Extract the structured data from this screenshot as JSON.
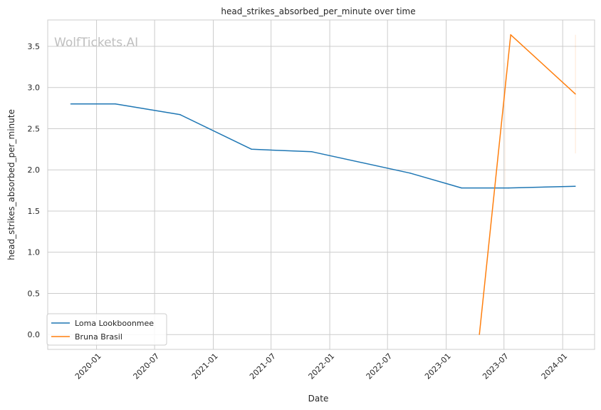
{
  "chart_data": {
    "type": "line",
    "title": "head_strikes_absorbed_per_minute over time",
    "xlabel": "Date",
    "ylabel": "head_strikes_absorbed_per_minute",
    "watermark": "WolfTickets.AI",
    "x_tick_labels": [
      "2020-01",
      "2020-07",
      "2021-01",
      "2021-07",
      "2022-01",
      "2022-07",
      "2023-01",
      "2023-07",
      "2024-01"
    ],
    "x_tick_dates": [
      "2020-01-01",
      "2020-07-01",
      "2021-01-01",
      "2021-07-01",
      "2022-01-01",
      "2022-07-01",
      "2023-01-01",
      "2023-07-01",
      "2024-01-01"
    ],
    "xlim": [
      "2019-08-01",
      "2024-04-10"
    ],
    "y_ticks": [
      0.0,
      0.5,
      1.0,
      1.5,
      2.0,
      2.5,
      3.0,
      3.5
    ],
    "y_tick_labels": [
      "0.0",
      "0.5",
      "1.0",
      "1.5",
      "2.0",
      "2.5",
      "3.0",
      "3.5"
    ],
    "ylim": [
      -0.18,
      3.82
    ],
    "grid": true,
    "legend_position": "lower-left",
    "series": [
      {
        "name": "Loma Lookboonmee",
        "color": "#1f77b4",
        "points": [
          {
            "x": "2019-10-12",
            "y": 2.8
          },
          {
            "x": "2020-02-29",
            "y": 2.8
          },
          {
            "x": "2020-09-19",
            "y": 2.67
          },
          {
            "x": "2021-05-01",
            "y": 2.25
          },
          {
            "x": "2021-11-06",
            "y": 2.22
          },
          {
            "x": "2022-09-10",
            "y": 1.96
          },
          {
            "x": "2023-02-18",
            "y": 1.78
          },
          {
            "x": "2023-07-15",
            "y": 1.78
          },
          {
            "x": "2024-02-10",
            "y": 1.8
          }
        ]
      },
      {
        "name": "Bruna Brasil",
        "color": "#ff7f0e",
        "points": [
          {
            "x": "2023-04-15",
            "y": 0.0
          },
          {
            "x": "2023-07-22",
            "y": 3.64
          },
          {
            "x": "2024-02-10",
            "y": 2.92
          }
        ]
      }
    ]
  }
}
